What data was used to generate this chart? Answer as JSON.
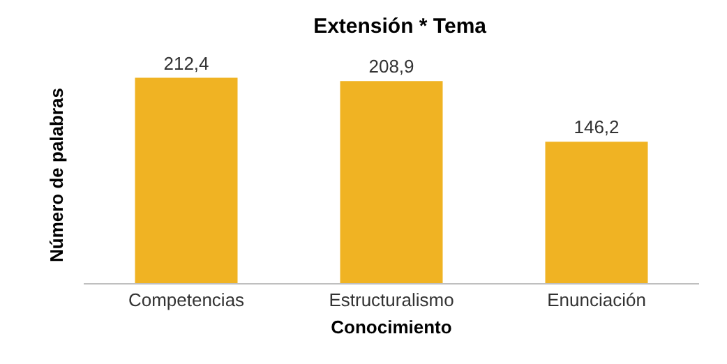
{
  "chart_data": {
    "type": "bar",
    "title": "Extensión * Tema",
    "xlabel": "Conocimiento",
    "ylabel": "Número de palabras",
    "categories": [
      "Competencias",
      "Estructuralismo",
      "Enunciación"
    ],
    "values": [
      212.4,
      208.9,
      146.2
    ],
    "value_labels": [
      "212,4",
      "208,9",
      "146,2"
    ],
    "color": "#f0b323",
    "grid": false,
    "legend": false
  }
}
